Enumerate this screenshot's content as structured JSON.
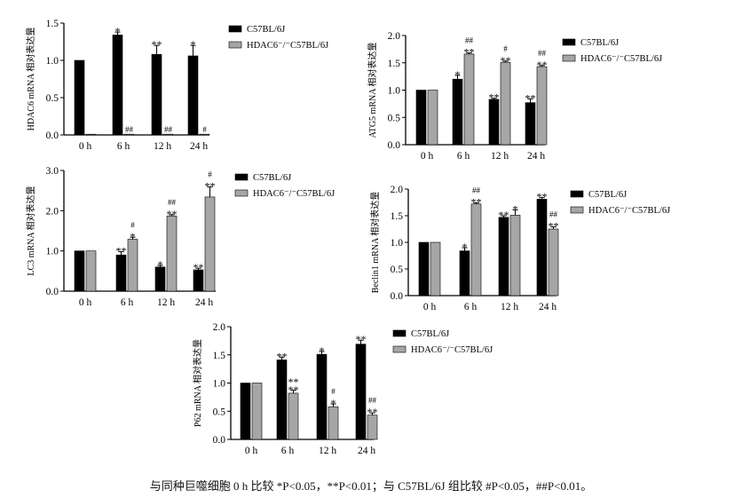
{
  "colors": {
    "wt": "#000000",
    "ko": "#a6a6a6",
    "axis": "#000000"
  },
  "legend": {
    "wt": "C57BL/6J",
    "ko": "HDAC6⁻/⁻C57BL/6J"
  },
  "caption": "与同种巨噬细胞 0 h 比较 *P<0.05，**P<0.01；与 C57BL/6J 组比较 #P<0.05，##P<0.01。",
  "chart_data": [
    {
      "id": "hdac6",
      "type": "bar",
      "ylabel": "HDAC6 mRNA 相对表达量",
      "categories": [
        "0 h",
        "6 h",
        "12 h",
        "24 h"
      ],
      "ylim": [
        0,
        1.5
      ],
      "yticks": [
        "0.0",
        "0.5",
        "1.0",
        "1.5"
      ],
      "series": [
        {
          "name": "C57BL/6J",
          "values": [
            1.0,
            1.34,
            1.08,
            1.06
          ],
          "err": [
            0,
            0.04,
            0.12,
            0.14
          ],
          "sig": [
            "",
            "*",
            "**",
            "*"
          ]
        },
        {
          "name": "HDAC6⁻/⁻C57BL/6J",
          "values": [
            0.0,
            0.01,
            0.01,
            0.01
          ],
          "err": [
            0,
            0,
            0,
            0
          ],
          "sig": [
            "",
            "##",
            "##",
            "#"
          ]
        }
      ]
    },
    {
      "id": "atg5",
      "type": "bar",
      "ylabel": "ATG5 mRNA 相对表达量",
      "categories": [
        "0 h",
        "6 h",
        "12 h",
        "24 h"
      ],
      "ylim": [
        0,
        2.0
      ],
      "yticks": [
        "0.0",
        "0.5",
        "1.0",
        "1.5",
        "2.0"
      ],
      "series": [
        {
          "name": "C57BL/6J",
          "values": [
            1.0,
            1.2,
            0.83,
            0.77
          ],
          "err": [
            0,
            0.07,
            0.02,
            0.07
          ],
          "sig": [
            "",
            "*",
            "**",
            "**"
          ]
        },
        {
          "name": "HDAC6⁻/⁻C57BL/6J",
          "values": [
            1.0,
            1.66,
            1.51,
            1.43
          ],
          "err": [
            0,
            0.02,
            0.02,
            0.02
          ],
          "sig": [
            "",
            "##\n**",
            "#\n**",
            "##\n**"
          ]
        }
      ]
    },
    {
      "id": "lc3",
      "type": "bar",
      "ylabel": "LC3 mRNA 相对表达量",
      "categories": [
        "0 h",
        "6 h",
        "12 h",
        "24 h"
      ],
      "ylim": [
        0,
        3.0
      ],
      "yticks": [
        "0.0",
        "1.0",
        "2.0",
        "3.0"
      ],
      "series": [
        {
          "name": "C57BL/6J",
          "values": [
            1.0,
            0.9,
            0.6,
            0.53
          ],
          "err": [
            0,
            0.08,
            0.04,
            0.04
          ],
          "sig": [
            "",
            "**",
            "*",
            "**"
          ]
        },
        {
          "name": "HDAC6⁻/⁻C57BL/6J",
          "values": [
            1.0,
            1.29,
            1.87,
            2.34
          ],
          "err": [
            0,
            0.05,
            0.03,
            0.25
          ],
          "sig": [
            "",
            "#\n*",
            "##\n**",
            "#\n**"
          ]
        }
      ]
    },
    {
      "id": "beclin1",
      "type": "bar",
      "ylabel": "Beclin1 mRNA 相对表达量",
      "categories": [
        "0 h",
        "6 h",
        "12 h",
        "24 h"
      ],
      "ylim": [
        0,
        2.0
      ],
      "yticks": [
        "0.0",
        "0.5",
        "1.0",
        "1.5",
        "2.0"
      ],
      "series": [
        {
          "name": "C57BL/6J",
          "values": [
            1.0,
            0.84,
            1.47,
            1.81
          ],
          "err": [
            0,
            0.06,
            0.03,
            0.03
          ],
          "sig": [
            "",
            "*",
            "**",
            "**"
          ]
        },
        {
          "name": "HDAC6⁻/⁻C57BL/6J",
          "values": [
            1.0,
            1.72,
            1.51,
            1.25
          ],
          "err": [
            0,
            0.02,
            0.1,
            0.04
          ],
          "sig": [
            "",
            "##\n**",
            "*",
            "##\n**"
          ]
        }
      ]
    },
    {
      "id": "p62",
      "type": "bar",
      "ylabel": "P62 mRNA 相对表达量",
      "categories": [
        "0 h",
        "6 h",
        "12 h",
        "24 h"
      ],
      "ylim": [
        0,
        2.0
      ],
      "yticks": [
        "0.0",
        "0.5",
        "1.0",
        "1.5",
        "2.0"
      ],
      "series": [
        {
          "name": "C57BL/6J",
          "values": [
            1.0,
            1.41,
            1.51,
            1.69
          ],
          "err": [
            0,
            0.05,
            0.05,
            0.07
          ],
          "sig": [
            "",
            "**",
            "*",
            "**"
          ]
        },
        {
          "name": "HDAC6⁻/⁻C57BL/6J",
          "values": [
            1.0,
            0.82,
            0.58,
            0.43
          ],
          "err": [
            0,
            0.05,
            0.05,
            0.04
          ],
          "sig": [
            "",
            "**\n**",
            "#\n*",
            "##\n**"
          ]
        }
      ]
    }
  ]
}
